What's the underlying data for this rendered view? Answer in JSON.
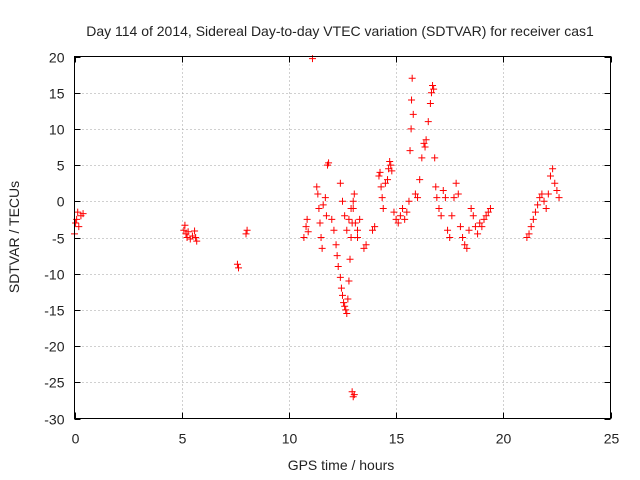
{
  "chart_data": {
    "type": "scatter",
    "title": "Day 114 of 2014, Sidereal Day-to-day VTEC variation (SDTVAR) for receiver cas1",
    "xlabel": "GPS time / hours",
    "ylabel": "SDTVAR / TECUs",
    "xlim": [
      0,
      25
    ],
    "ylim": [
      -30,
      20
    ],
    "xticks": [
      0,
      5,
      10,
      15,
      20,
      25
    ],
    "yticks": [
      -30,
      -25,
      -20,
      -15,
      -10,
      -5,
      0,
      5,
      10,
      15,
      20
    ],
    "grid": true,
    "marker": "+",
    "series_color": "#ff0000",
    "series": [
      {
        "name": "SDTVAR",
        "x": [
          0.0,
          0.05,
          0.1,
          0.15,
          0.2,
          0.3,
          0.4,
          5.1,
          5.15,
          5.2,
          5.25,
          5.3,
          5.4,
          5.5,
          5.6,
          5.65,
          5.7,
          7.6,
          7.65,
          8.0,
          8.05,
          10.7,
          10.8,
          10.85,
          10.9,
          11.1,
          11.3,
          11.35,
          11.4,
          11.45,
          11.5,
          11.55,
          11.6,
          11.7,
          11.75,
          11.8,
          11.85,
          12.0,
          12.1,
          12.2,
          12.25,
          12.3,
          12.4,
          12.45,
          12.5,
          12.55,
          12.6,
          12.65,
          12.7,
          12.75,
          12.8,
          12.85,
          12.9,
          12.95,
          13.0,
          13.05,
          12.4,
          12.5,
          12.6,
          12.7,
          12.8,
          12.9,
          13.0,
          13.1,
          13.2,
          12.95,
          13.0,
          13.05,
          13.2,
          13.3,
          13.5,
          13.6,
          13.9,
          14.0,
          14.2,
          14.25,
          14.3,
          14.35,
          14.4,
          14.5,
          14.6,
          14.65,
          14.7,
          14.75,
          14.8,
          14.9,
          15.0,
          15.1,
          15.2,
          15.3,
          15.4,
          15.5,
          15.6,
          15.65,
          15.7,
          15.72,
          15.75,
          15.8,
          15.9,
          16.0,
          16.1,
          16.2,
          16.3,
          16.35,
          16.4,
          16.5,
          16.6,
          16.65,
          16.7,
          16.75,
          16.8,
          16.85,
          16.9,
          17.0,
          17.1,
          17.2,
          17.3,
          17.4,
          17.5,
          17.6,
          17.7,
          17.8,
          17.9,
          18.0,
          18.1,
          18.2,
          18.3,
          18.4,
          18.5,
          18.6,
          18.7,
          18.8,
          18.9,
          19.0,
          19.1,
          19.2,
          19.3,
          19.4,
          21.1,
          21.2,
          21.3,
          21.4,
          21.5,
          21.6,
          21.7,
          21.8,
          21.9,
          22.0,
          22.1,
          22.2,
          22.3,
          22.4,
          22.5,
          22.6
        ],
        "y": [
          -4.5,
          -3.0,
          -2.5,
          -1.5,
          -3.5,
          -2.0,
          -1.7,
          -4.0,
          -3.3,
          -4.5,
          -5.0,
          -4.2,
          -5.2,
          -4.8,
          -4.1,
          -5.0,
          -5.5,
          -8.7,
          -9.2,
          -4.5,
          -4.0,
          -5.0,
          -3.5,
          -2.5,
          -4.2,
          19.7,
          2.0,
          1.0,
          -1.0,
          -3.0,
          -5.0,
          -6.5,
          -0.5,
          0.5,
          -2.0,
          5.0,
          5.3,
          -2.5,
          -4.0,
          -6.0,
          -7.5,
          -9.0,
          -10.5,
          -12.0,
          -13.0,
          -14.0,
          -14.5,
          -15.0,
          -15.5,
          -13.5,
          -11.0,
          -8.0,
          -5.0,
          -3.0,
          -1.0,
          1.0,
          2.5,
          0.0,
          -2.0,
          -4.0,
          -2.5,
          -1.0,
          0.0,
          -3.0,
          -5.0,
          -26.3,
          -27.0,
          -26.7,
          -4.0,
          -2.5,
          -6.5,
          -6.0,
          -4.0,
          -3.5,
          3.5,
          4.0,
          2.0,
          0.5,
          -1.0,
          2.5,
          3.0,
          4.5,
          5.5,
          5.0,
          4.2,
          -1.5,
          -2.5,
          -3.0,
          -2.0,
          -1.0,
          -2.5,
          -1.5,
          0.0,
          7.0,
          10.0,
          14.0,
          17.0,
          12.0,
          1.0,
          0.5,
          3.0,
          6.0,
          8.0,
          7.5,
          8.5,
          11.0,
          13.5,
          15.0,
          16.0,
          15.5,
          6.0,
          2.0,
          0.5,
          -1.0,
          -2.0,
          1.5,
          0.5,
          -4.0,
          -5.0,
          -2.0,
          0.5,
          2.5,
          1.0,
          -3.5,
          -5.0,
          -6.0,
          -6.5,
          -4.0,
          -1.0,
          -2.0,
          -3.5,
          -4.5,
          -3.0,
          -3.5,
          -2.5,
          -2.0,
          -1.5,
          -1.0,
          -5.0,
          -4.5,
          -3.5,
          -2.5,
          -1.5,
          -0.5,
          0.5,
          1.0,
          0.0,
          -1.0,
          1.0,
          3.5,
          4.5,
          2.5,
          1.5,
          0.5
        ]
      }
    ]
  }
}
